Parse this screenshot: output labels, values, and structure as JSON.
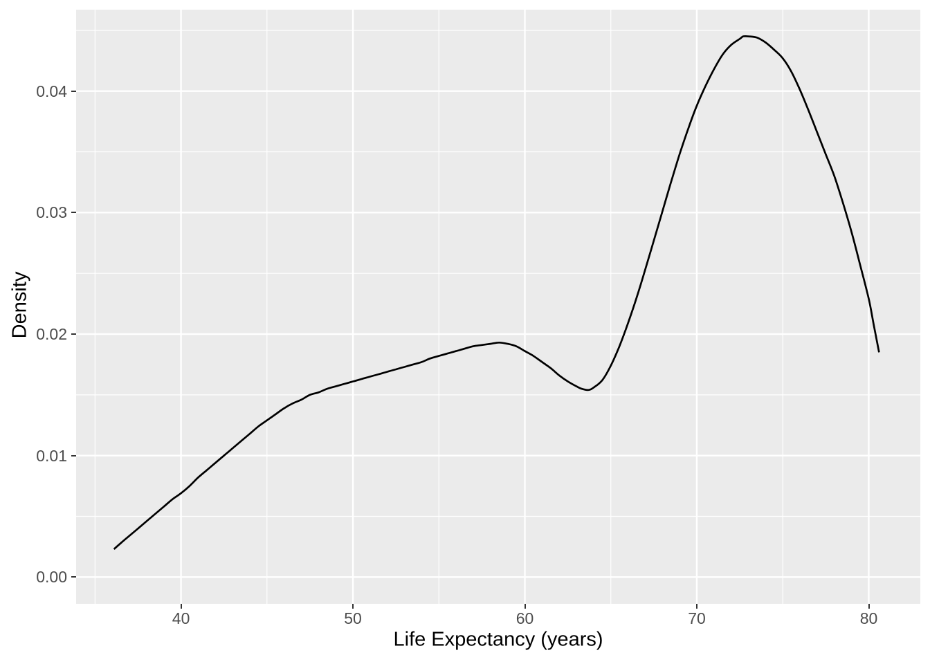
{
  "chart": {
    "x_axis_title": "Life Expectancy (years)",
    "y_axis_title": "Density"
  },
  "chart_data": {
    "type": "line",
    "subtype": "density-curve",
    "xlabel": "Life Expectancy (years)",
    "ylabel": "Density",
    "xlim": [
      33.9,
      83.0
    ],
    "ylim": [
      -0.0022,
      0.0467
    ],
    "x_ticks": {
      "values": [
        40,
        50,
        60,
        70,
        80
      ],
      "labels": [
        "40",
        "50",
        "60",
        "70",
        "80"
      ]
    },
    "y_ticks": {
      "values": [
        0.0,
        0.01,
        0.02,
        0.03,
        0.04
      ],
      "labels": [
        "0.00",
        "0.01",
        "0.02",
        "0.03",
        "0.04"
      ]
    },
    "x_minor": [
      35,
      45,
      55,
      65,
      75
    ],
    "y_minor": [
      0.005,
      0.015,
      0.025,
      0.035,
      0.045
    ],
    "grid": {
      "major": true,
      "minor": true
    },
    "legend_position": "none",
    "annotations": {
      "curve_start": [
        36.1,
        0.0023
      ],
      "local_max": [
        58.3,
        0.0193
      ],
      "local_min": [
        63.5,
        0.0154
      ],
      "peak": [
        72.7,
        0.0445
      ],
      "curve_end": [
        80.6,
        0.0185
      ]
    },
    "series": [
      {
        "name": "density",
        "points": [
          [
            36.1,
            0.0023
          ],
          [
            36.5,
            0.0028
          ],
          [
            37,
            0.0034
          ],
          [
            37.5,
            0.004
          ],
          [
            38,
            0.0046
          ],
          [
            38.5,
            0.0052
          ],
          [
            39,
            0.0058
          ],
          [
            39.5,
            0.0064
          ],
          [
            40,
            0.0069
          ],
          [
            40.5,
            0.0075
          ],
          [
            41,
            0.0082
          ],
          [
            41.5,
            0.0088
          ],
          [
            42,
            0.0094
          ],
          [
            42.5,
            0.01
          ],
          [
            43,
            0.0106
          ],
          [
            43.5,
            0.0112
          ],
          [
            44,
            0.0118
          ],
          [
            44.5,
            0.0124
          ],
          [
            45,
            0.0129
          ],
          [
            45.5,
            0.0134
          ],
          [
            46,
            0.0139
          ],
          [
            46.5,
            0.0143
          ],
          [
            47,
            0.0146
          ],
          [
            47.5,
            0.015
          ],
          [
            48,
            0.0152
          ],
          [
            48.5,
            0.0155
          ],
          [
            49,
            0.0157
          ],
          [
            49.5,
            0.0159
          ],
          [
            50,
            0.0161
          ],
          [
            50.5,
            0.0163
          ],
          [
            51,
            0.0165
          ],
          [
            51.5,
            0.0167
          ],
          [
            52,
            0.0169
          ],
          [
            52.5,
            0.0171
          ],
          [
            53,
            0.0173
          ],
          [
            53.5,
            0.0175
          ],
          [
            54,
            0.0177
          ],
          [
            54.5,
            0.018
          ],
          [
            55,
            0.0182
          ],
          [
            55.5,
            0.0184
          ],
          [
            56,
            0.0186
          ],
          [
            56.5,
            0.0188
          ],
          [
            57,
            0.019
          ],
          [
            57.5,
            0.0191
          ],
          [
            58,
            0.0192
          ],
          [
            58.5,
            0.0193
          ],
          [
            59,
            0.0192
          ],
          [
            59.5,
            0.019
          ],
          [
            60,
            0.0186
          ],
          [
            60.5,
            0.0182
          ],
          [
            61,
            0.0177
          ],
          [
            61.5,
            0.0172
          ],
          [
            62,
            0.0166
          ],
          [
            62.5,
            0.0161
          ],
          [
            63,
            0.0157
          ],
          [
            63.3,
            0.0155
          ],
          [
            63.7,
            0.0154
          ],
          [
            64,
            0.0156
          ],
          [
            64.5,
            0.0162
          ],
          [
            65,
            0.0174
          ],
          [
            65.5,
            0.019
          ],
          [
            66,
            0.0209
          ],
          [
            66.5,
            0.023
          ],
          [
            67,
            0.0253
          ],
          [
            67.5,
            0.0277
          ],
          [
            68,
            0.0301
          ],
          [
            68.5,
            0.0325
          ],
          [
            69,
            0.0348
          ],
          [
            69.5,
            0.0369
          ],
          [
            70,
            0.0388
          ],
          [
            70.5,
            0.0404
          ],
          [
            71,
            0.0418
          ],
          [
            71.5,
            0.043
          ],
          [
            72,
            0.0438
          ],
          [
            72.5,
            0.0443
          ],
          [
            72.7,
            0.0445
          ],
          [
            73,
            0.0445
          ],
          [
            73.5,
            0.0444
          ],
          [
            74,
            0.044
          ],
          [
            74.5,
            0.0434
          ],
          [
            75,
            0.0427
          ],
          [
            75.5,
            0.0416
          ],
          [
            76,
            0.0401
          ],
          [
            76.5,
            0.0384
          ],
          [
            77,
            0.0366
          ],
          [
            77.5,
            0.0348
          ],
          [
            78,
            0.033
          ],
          [
            78.5,
            0.0308
          ],
          [
            79,
            0.0284
          ],
          [
            79.5,
            0.0257
          ],
          [
            80,
            0.0229
          ],
          [
            80.3,
            0.0207
          ],
          [
            80.6,
            0.0185
          ]
        ]
      }
    ],
    "styles": {
      "background": "#FFFFFF",
      "panel_bg": "#EBEBEB",
      "grid_color": "#FFFFFF",
      "grid_major_width": 2.4,
      "grid_minor_width": 1.2,
      "line_color": "#000000",
      "line_width": 2.7,
      "tick_label_color": "#4D4D4D",
      "tick_mark_color": "#333333",
      "axis_title_color": "#000000"
    }
  }
}
